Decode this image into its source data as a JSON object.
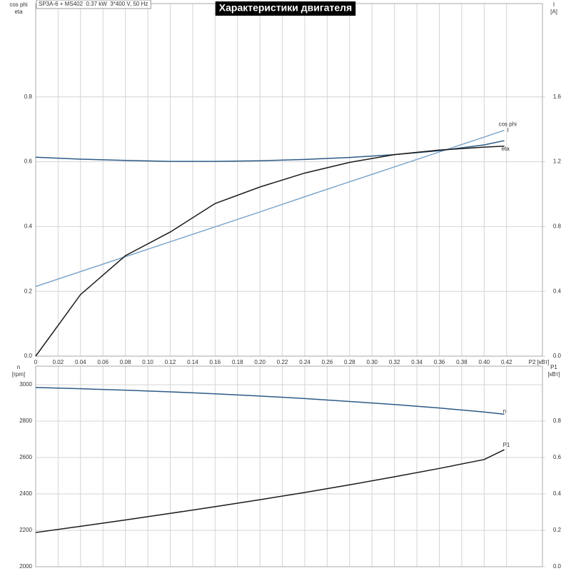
{
  "chart_data": [
    {
      "type": "line",
      "title": "Характеристики двигателя",
      "subtitle": "SP3A-6 + MS402  0.37 kW  3*400 V, 50 Hz",
      "ylabel_lines": [
        "cos phi",
        "eta"
      ],
      "y2label_lines": [
        "I",
        "[A]"
      ],
      "xlabel": "P2 [кВт]",
      "grid": true,
      "xlim": [
        0,
        0.452
      ],
      "xticks": [
        0,
        0.02,
        0.04,
        0.06,
        0.08,
        {
          "value": 0.1,
          "label": "0.10"
        },
        0.12,
        0.14,
        0.16,
        0.18,
        {
          "value": 0.2,
          "label": "0.20"
        },
        0.22,
        0.24,
        0.26,
        0.28,
        {
          "value": 0.3,
          "label": "0.30"
        },
        0.32,
        0.34,
        0.36,
        0.38,
        {
          "value": 0.4,
          "label": "0.40"
        },
        0.42
      ],
      "ylim": [
        0,
        1.088
      ],
      "yticks": [
        {
          "value": 0,
          "label": "0.0"
        },
        0.2,
        0.4,
        0.6,
        0.8
      ],
      "y2lim": [
        0,
        2.176
      ],
      "y2ticks": [
        {
          "value": 0,
          "label": "0.0"
        },
        0.4,
        0.8,
        1.2,
        1.6
      ],
      "x": [
        0,
        0.04,
        0.08,
        0.12,
        0.16,
        0.2,
        0.24,
        0.28,
        0.32,
        0.36,
        0.4,
        0.418
      ],
      "series": [
        {
          "name": "cos phi",
          "color": "#7fa6cc",
          "values": [
            0.215,
            0.261,
            0.307,
            0.353,
            0.399,
            0.445,
            0.492,
            0.538,
            0.584,
            0.63,
            0.676,
            0.697
          ]
        },
        {
          "name": "I",
          "color": "#2c5a88",
          "axis": "y2",
          "values": [
            1.228,
            1.216,
            1.208,
            1.202,
            1.202,
            1.206,
            1.214,
            1.226,
            1.244,
            1.268,
            1.304,
            1.33
          ]
        },
        {
          "name": "eta",
          "color": "#1a1a1a",
          "values": [
            0,
            0.19,
            0.31,
            0.383,
            0.471,
            0.522,
            0.565,
            0.598,
            0.622,
            0.636,
            0.645,
            0.648
          ]
        }
      ]
    },
    {
      "type": "line",
      "ylabel_lines": [
        "n",
        "[rpm]"
      ],
      "y2label_lines": [
        "P1",
        "[кВт]"
      ],
      "grid": true,
      "xlim": [
        0,
        0.452
      ],
      "ylim": [
        2000,
        3102
      ],
      "yticks": [
        2000,
        2200,
        2400,
        2600,
        2800,
        3000
      ],
      "y2lim": [
        0,
        1.102
      ],
      "y2ticks": [
        {
          "value": 0,
          "label": "0.0"
        },
        0.2,
        0.4,
        0.6,
        0.8
      ],
      "x": [
        0,
        0.04,
        0.08,
        0.12,
        0.16,
        0.2,
        0.24,
        0.28,
        0.32,
        0.36,
        0.4,
        0.418
      ],
      "series": [
        {
          "name": "n",
          "color": "#2c5a88",
          "values": [
            2985,
            2978,
            2970,
            2961,
            2950,
            2938,
            2924,
            2908,
            2891,
            2872,
            2850,
            2838
          ]
        },
        {
          "name": "P1",
          "color": "#1a1a1a",
          "axis": "y2",
          "values": [
            0.188,
            0.222,
            0.257,
            0.293,
            0.33,
            0.368,
            0.408,
            0.45,
            0.494,
            0.54,
            0.589,
            0.643
          ]
        }
      ]
    }
  ]
}
